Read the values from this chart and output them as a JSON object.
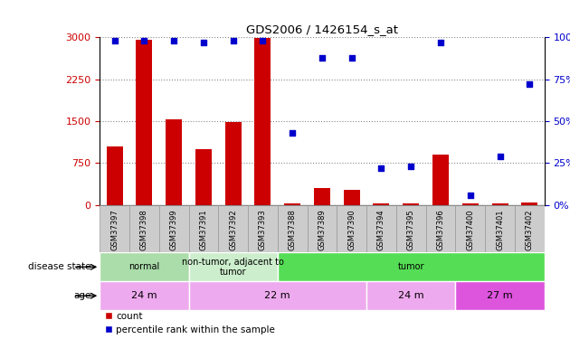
{
  "title": "GDS2006 / 1426154_s_at",
  "samples": [
    "GSM37397",
    "GSM37398",
    "GSM37399",
    "GSM37391",
    "GSM37392",
    "GSM37393",
    "GSM37388",
    "GSM37389",
    "GSM37390",
    "GSM37394",
    "GSM37395",
    "GSM37396",
    "GSM37400",
    "GSM37401",
    "GSM37402"
  ],
  "counts": [
    1050,
    2950,
    1530,
    1000,
    1480,
    2980,
    30,
    300,
    270,
    30,
    30,
    900,
    30,
    30,
    50
  ],
  "percentiles": [
    98,
    98,
    98,
    97,
    98,
    98,
    43,
    88,
    88,
    22,
    23,
    97,
    6,
    29,
    72
  ],
  "bar_color": "#cc0000",
  "dot_color": "#0000cc",
  "ylim_left": [
    0,
    3000
  ],
  "ylim_right": [
    0,
    100
  ],
  "yticks_left": [
    0,
    750,
    1500,
    2250,
    3000
  ],
  "yticks_right": [
    0,
    25,
    50,
    75,
    100
  ],
  "disease_state_groups": [
    {
      "label": "normal",
      "start": 0,
      "end": 3,
      "color": "#aaddaa"
    },
    {
      "label": "non-tumor, adjacent to\ntumor",
      "start": 3,
      "end": 6,
      "color": "#cceecc"
    },
    {
      "label": "tumor",
      "start": 6,
      "end": 15,
      "color": "#55dd55"
    }
  ],
  "age_groups": [
    {
      "label": "24 m",
      "start": 0,
      "end": 3,
      "color": "#eeaaee"
    },
    {
      "label": "22 m",
      "start": 3,
      "end": 9,
      "color": "#eeaaee"
    },
    {
      "label": "24 m",
      "start": 9,
      "end": 12,
      "color": "#eeaaee"
    },
    {
      "label": "27 m",
      "start": 12,
      "end": 15,
      "color": "#dd55dd"
    }
  ],
  "disease_state_label": "disease state",
  "age_label": "age",
  "legend_count": "count",
  "legend_percentile": "percentile rank within the sample",
  "bar_color_legend": "#cc0000",
  "dot_color_legend": "#0000cc",
  "grid_color": "#888888",
  "tick_label_color_left": "#cc0000",
  "tick_label_color_right": "#0000cc",
  "label_box_color": "#cccccc",
  "label_box_edge": "#999999"
}
